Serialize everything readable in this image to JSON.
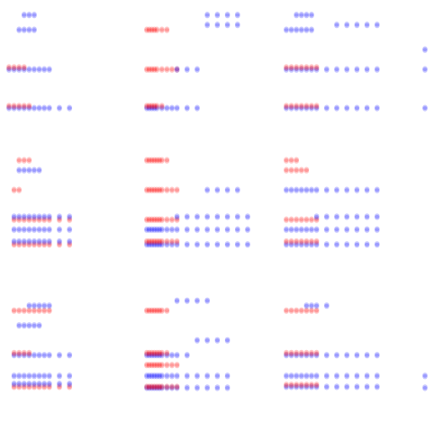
{
  "chart_data": {
    "type": "scatter",
    "title": "",
    "layout": {
      "rows": 3,
      "cols": 4
    },
    "colors": {
      "class_a": "#ff0000",
      "class_b": "#0000ff"
    },
    "point_alpha": 0.22,
    "panels": [
      {
        "xlim": [
          0,
          10
        ],
        "ylim": [
          0,
          10
        ],
        "columns": [
          0,
          0.5,
          1,
          1.5,
          2,
          2.5,
          3,
          3.5,
          4,
          5,
          6
        ],
        "rows": [
          {
            "y": 0.1,
            "from": 0,
            "to": 6,
            "c": "b"
          },
          {
            "y": 0.3,
            "from": 0,
            "to": 2,
            "c": "r"
          },
          {
            "y": 4,
            "from": 0,
            "to": 4,
            "c": "b"
          },
          {
            "y": 4.2,
            "from": 0,
            "to": 1.5,
            "c": "r"
          },
          {
            "y": 8,
            "from": 1,
            "to": 2.5,
            "c": "b"
          },
          {
            "y": 9.5,
            "from": 1.5,
            "to": 2.5,
            "c": "b"
          }
        ]
      },
      {
        "xlim": [
          0,
          20
        ],
        "ylim": [
          0,
          10
        ],
        "columns": [
          0,
          0.5,
          1,
          1.5,
          2,
          3,
          4,
          5,
          6,
          8,
          10,
          12,
          14,
          16,
          18
        ],
        "rows": [
          {
            "y": 0.1,
            "from": 0,
            "to": 10,
            "c": "b"
          },
          {
            "y": 0.3,
            "from": 0,
            "to": 3,
            "c": "r"
          },
          {
            "y": 4,
            "from": 0,
            "to": 6,
            "c": "r"
          },
          {
            "y": 4,
            "from": 6,
            "to": 10,
            "c": "b"
          },
          {
            "y": 8,
            "from": 0,
            "to": 4,
            "c": "r"
          },
          {
            "y": 8.5,
            "from": 12,
            "to": 18,
            "c": "b"
          },
          {
            "y": 9.5,
            "from": 12,
            "to": 18,
            "c": "b"
          }
        ]
      },
      {
        "xlim": [
          0,
          10
        ],
        "ylim": [
          0,
          10
        ],
        "columns": [
          0,
          0.5,
          1,
          1.5,
          2,
          2.5,
          3,
          4,
          5,
          6,
          7,
          8,
          9
        ],
        "rows": [
          {
            "y": 0.1,
            "from": 0,
            "to": 10,
            "c": "b"
          },
          {
            "y": 0.3,
            "from": 0,
            "to": 3,
            "c": "r"
          },
          {
            "y": 4,
            "from": 0,
            "to": 10,
            "c": "b"
          },
          {
            "y": 4.2,
            "from": 0,
            "to": 3,
            "c": "r"
          },
          {
            "y": 8,
            "from": 0,
            "to": 2.5,
            "c": "b"
          },
          {
            "y": 8.5,
            "from": 5,
            "to": 10,
            "c": "b"
          },
          {
            "y": 9.5,
            "from": 1,
            "to": 2.5,
            "c": "b"
          }
        ]
      },
      {
        "xlim": [
          0,
          10
        ],
        "ylim": [
          0,
          10
        ],
        "columns": [
          0
        ],
        "rows": [
          {
            "y": 0.1,
            "from": 0,
            "to": 0,
            "c": "b"
          },
          {
            "y": 4,
            "from": 0,
            "to": 0,
            "c": "b"
          },
          {
            "y": 6,
            "from": 0,
            "to": 0,
            "c": "b"
          }
        ]
      },
      {
        "xlim": [
          0,
          10
        ],
        "ylim": [
          0,
          10
        ],
        "columns": [
          0.5,
          1,
          1.5,
          2,
          2.5,
          3,
          3.5,
          4,
          5,
          6
        ],
        "rows": [
          {
            "y": 0.5,
            "from": 0,
            "to": 6,
            "c": "r"
          },
          {
            "y": 0.8,
            "from": 0,
            "to": 6,
            "c": "b"
          },
          {
            "y": 2,
            "from": 0,
            "to": 6,
            "c": "b"
          },
          {
            "y": 3,
            "from": 0,
            "to": 6,
            "c": "r"
          },
          {
            "y": 3.3,
            "from": 0,
            "to": 6,
            "c": "b"
          },
          {
            "y": 6,
            "from": 0,
            "to": 1,
            "c": "r"
          },
          {
            "y": 8,
            "from": 1,
            "to": 3,
            "c": "b"
          },
          {
            "y": 9,
            "from": 1,
            "to": 2,
            "c": "r"
          }
        ]
      },
      {
        "xlim": [
          0,
          20
        ],
        "ylim": [
          0,
          10
        ],
        "columns": [
          0,
          0.5,
          1,
          1.5,
          2,
          2.5,
          3,
          4,
          5,
          6,
          8,
          10,
          12,
          14,
          16,
          18,
          20
        ],
        "rows": [
          {
            "y": 0.5,
            "from": 0,
            "to": 20,
            "c": "b"
          },
          {
            "y": 0.8,
            "from": 0,
            "to": 6,
            "c": "r"
          },
          {
            "y": 2,
            "from": 0,
            "to": 20,
            "c": "b"
          },
          {
            "y": 3,
            "from": 0,
            "to": 6,
            "c": "r"
          },
          {
            "y": 3.3,
            "from": 6,
            "to": 20,
            "c": "b"
          },
          {
            "y": 6,
            "from": 0,
            "to": 6,
            "c": "r"
          },
          {
            "y": 6,
            "from": 12,
            "to": 18,
            "c": "b"
          },
          {
            "y": 9,
            "from": 0,
            "to": 4,
            "c": "r"
          }
        ]
      },
      {
        "xlim": [
          0,
          10
        ],
        "ylim": [
          0,
          10
        ],
        "columns": [
          0,
          0.5,
          1,
          1.5,
          2,
          2.5,
          3,
          4,
          5,
          6,
          7,
          8,
          9
        ],
        "rows": [
          {
            "y": 0.5,
            "from": 0,
            "to": 10,
            "c": "b"
          },
          {
            "y": 0.8,
            "from": 0,
            "to": 3,
            "c": "r"
          },
          {
            "y": 2,
            "from": 0,
            "to": 10,
            "c": "b"
          },
          {
            "y": 3,
            "from": 0,
            "to": 3,
            "c": "r"
          },
          {
            "y": 3.3,
            "from": 3,
            "to": 10,
            "c": "b"
          },
          {
            "y": 6,
            "from": 0,
            "to": 10,
            "c": "b"
          },
          {
            "y": 8,
            "from": 0,
            "to": 2,
            "c": "r"
          },
          {
            "y": 9,
            "from": 0,
            "to": 1,
            "c": "r"
          }
        ]
      },
      {
        "xlim": [
          0,
          10
        ],
        "ylim": [
          0,
          10
        ],
        "columns": [],
        "rows": []
      },
      {
        "xlim": [
          0,
          10
        ],
        "ylim": [
          0,
          10
        ],
        "columns": [
          0.5,
          1,
          1.5,
          2,
          2.5,
          3,
          3.5,
          4,
          5,
          6
        ],
        "rows": [
          {
            "y": 0.3,
            "from": 0,
            "to": 6,
            "c": "r"
          },
          {
            "y": 0.6,
            "from": 0,
            "to": 6,
            "c": "b"
          },
          {
            "y": 1.4,
            "from": 0,
            "to": 6,
            "c": "b"
          },
          {
            "y": 3.5,
            "from": 0,
            "to": 6,
            "c": "b"
          },
          {
            "y": 3.7,
            "from": 0,
            "to": 2,
            "c": "r"
          },
          {
            "y": 6.5,
            "from": 1,
            "to": 3,
            "c": "b"
          },
          {
            "y": 8,
            "from": 0,
            "to": 4,
            "c": "r"
          },
          {
            "y": 8.5,
            "from": 2,
            "to": 4,
            "c": "b"
          }
        ]
      },
      {
        "xlim": [
          0,
          20
        ],
        "ylim": [
          0,
          10
        ],
        "columns": [
          0,
          0.5,
          1,
          1.5,
          2,
          2.5,
          3,
          4,
          5,
          6,
          8,
          10,
          12,
          14,
          16
        ],
        "rows": [
          {
            "y": 0.2,
            "from": 0,
            "to": 16,
            "c": "b"
          },
          {
            "y": 0.3,
            "from": 0,
            "to": 6,
            "c": "r"
          },
          {
            "y": 1.4,
            "from": 0,
            "to": 16,
            "c": "b"
          },
          {
            "y": 2.5,
            "from": 0,
            "to": 6,
            "c": "r"
          },
          {
            "y": 3.5,
            "from": 0,
            "to": 8,
            "c": "b"
          },
          {
            "y": 3.7,
            "from": 0,
            "to": 4,
            "c": "r"
          },
          {
            "y": 5,
            "from": 10,
            "to": 16,
            "c": "b"
          },
          {
            "y": 8,
            "from": 0,
            "to": 4,
            "c": "r"
          },
          {
            "y": 9,
            "from": 6,
            "to": 12,
            "c": "b"
          }
        ]
      },
      {
        "xlim": [
          0,
          10
        ],
        "ylim": [
          0,
          10
        ],
        "columns": [
          0,
          0.5,
          1,
          1.5,
          2,
          2.5,
          3,
          4,
          5,
          6,
          7,
          8,
          9
        ],
        "rows": [
          {
            "y": 0.3,
            "from": 0,
            "to": 10,
            "c": "b"
          },
          {
            "y": 0.5,
            "from": 0,
            "to": 3,
            "c": "r"
          },
          {
            "y": 1.4,
            "from": 0,
            "to": 10,
            "c": "b"
          },
          {
            "y": 3.5,
            "from": 0,
            "to": 10,
            "c": "b"
          },
          {
            "y": 3.7,
            "from": 0,
            "to": 3,
            "c": "r"
          },
          {
            "y": 8,
            "from": 0,
            "to": 3,
            "c": "r"
          },
          {
            "y": 8.5,
            "from": 2,
            "to": 4,
            "c": "b"
          }
        ]
      },
      {
        "xlim": [
          0,
          10
        ],
        "ylim": [
          0,
          10
        ],
        "columns": [
          0
        ],
        "rows": [
          {
            "y": 0.2,
            "from": 0,
            "to": 0,
            "c": "b"
          },
          {
            "y": 1.4,
            "from": 0,
            "to": 0,
            "c": "b"
          }
        ]
      }
    ]
  }
}
